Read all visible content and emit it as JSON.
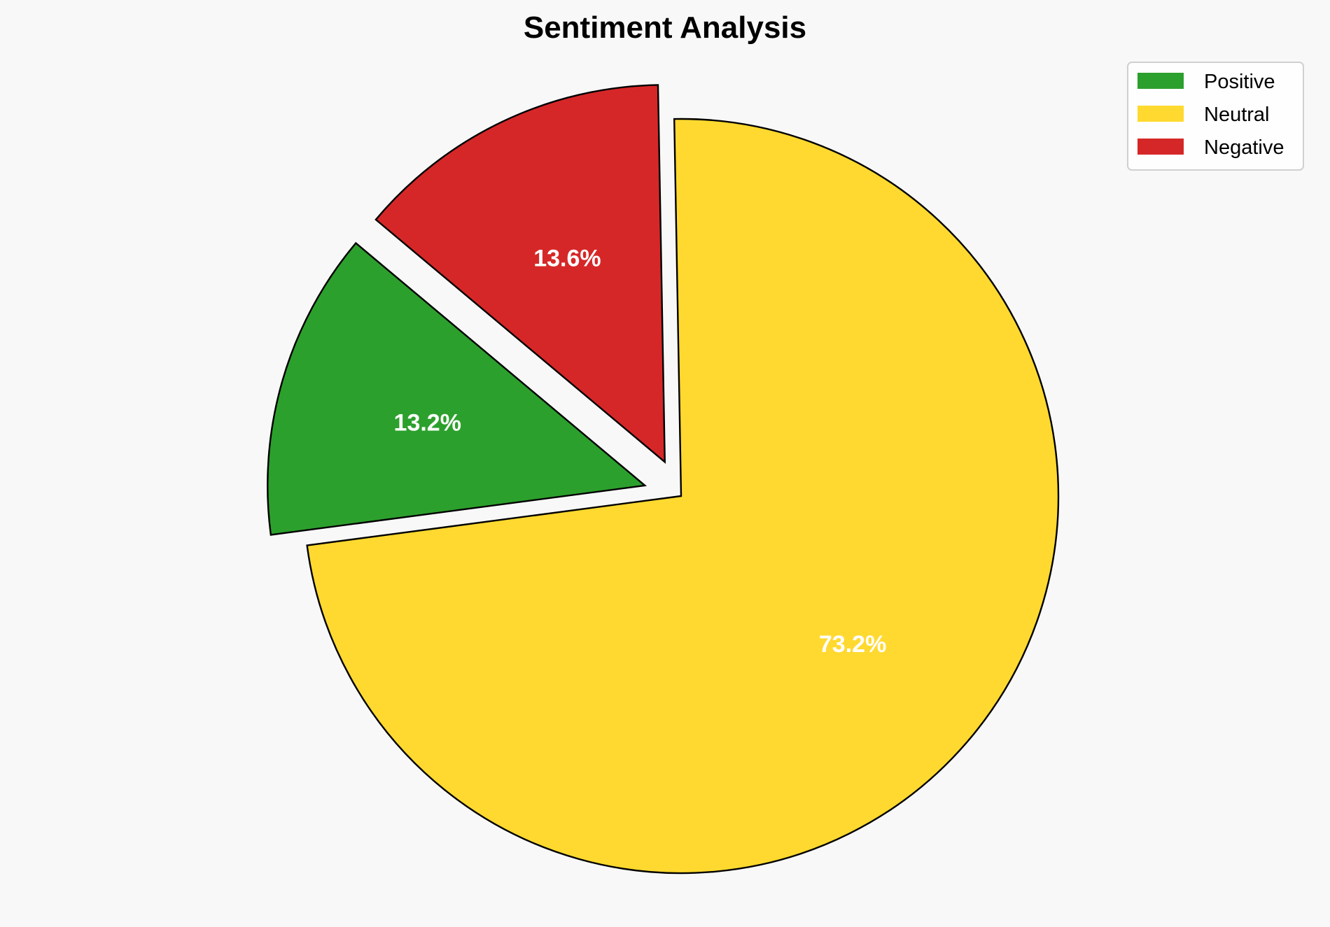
{
  "chart_data": {
    "type": "pie",
    "title": "Sentiment Analysis",
    "categories": [
      "Positive",
      "Neutral",
      "Negative"
    ],
    "values": [
      13.2,
      73.2,
      13.6
    ],
    "labels": [
      "13.2%",
      "73.2%",
      "13.6%"
    ],
    "colors": [
      "#2ca02c",
      "#ffd92f",
      "#d62728"
    ],
    "explode": [
      0.1,
      0,
      0.1
    ],
    "start_angle_deg": 140,
    "direction": "counterclockwise",
    "edge_color": "#000000",
    "legend_placement": "top-right",
    "background": "#f8f8f8"
  }
}
